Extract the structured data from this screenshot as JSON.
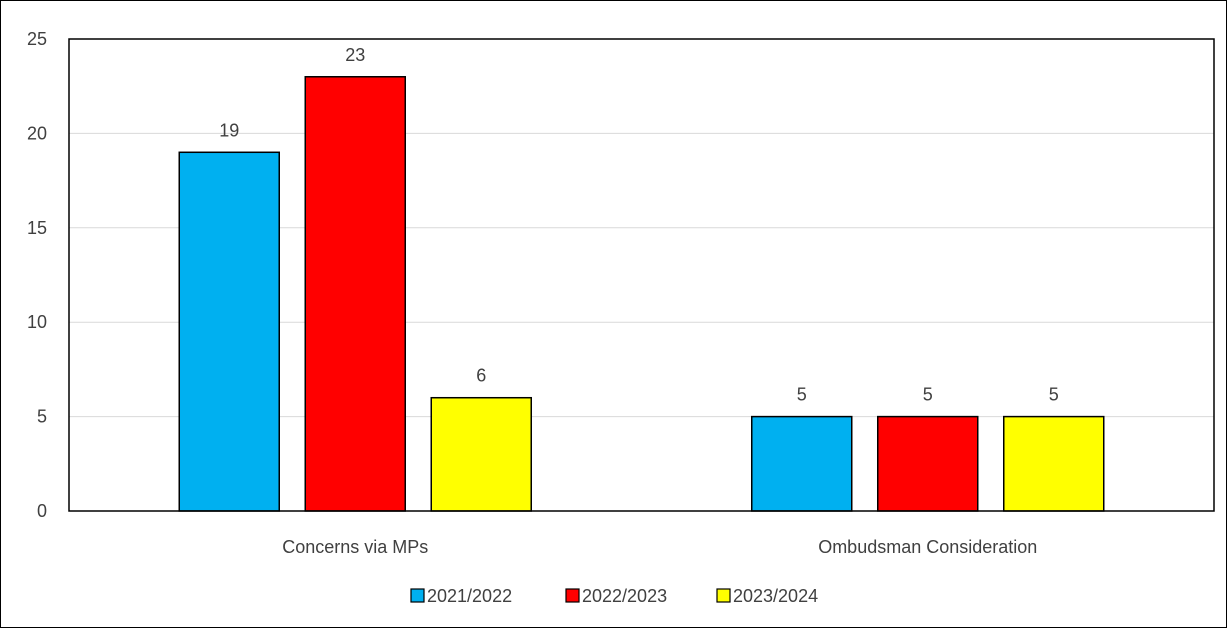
{
  "chart_data": {
    "type": "bar",
    "title": "",
    "xlabel": "",
    "ylabel": "",
    "categories": [
      "Concerns via MPs",
      "Ombudsman Consideration"
    ],
    "series": [
      {
        "name": "2021/2022",
        "color": "#00B0F0",
        "values": [
          19,
          5
        ]
      },
      {
        "name": "2022/2023",
        "color": "#FF0000",
        "values": [
          23,
          5
        ]
      },
      {
        "name": "2023/2024",
        "color": "#FFFF00",
        "values": [
          6,
          5
        ]
      }
    ],
    "ylim": [
      0,
      25
    ],
    "yticks": [
      0,
      5,
      10,
      15,
      20,
      25
    ],
    "grid": true,
    "legend_position": "bottom",
    "data_labels": true
  }
}
